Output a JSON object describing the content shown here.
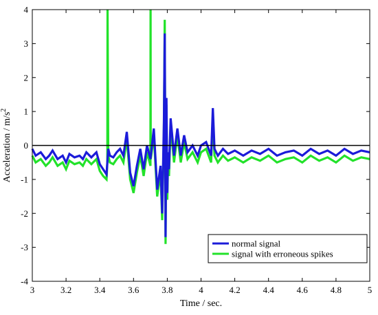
{
  "chart_data": {
    "type": "line",
    "title": "",
    "xlabel": "Time / sec.",
    "ylabel_main": "Acceleration / m/s",
    "ylabel_sup": "2",
    "xlim": [
      3,
      5
    ],
    "ylim": [
      -4,
      4
    ],
    "xticks": [
      "3",
      "3.2",
      "3.4",
      "3.6",
      "3.8",
      "4",
      "4.2",
      "4.4",
      "4.6",
      "4.8",
      "5"
    ],
    "yticks": [
      "-4",
      "-3",
      "-2",
      "-1",
      "0",
      "1",
      "2",
      "3",
      "4"
    ],
    "zero_line": true,
    "legend_position": "bottom-right",
    "series": [
      {
        "name": "signal with erroneous spikes",
        "color": "#22e22a",
        "x": [
          3.0,
          3.02,
          3.05,
          3.08,
          3.1,
          3.12,
          3.15,
          3.18,
          3.2,
          3.22,
          3.25,
          3.28,
          3.3,
          3.32,
          3.35,
          3.38,
          3.4,
          3.42,
          3.44,
          3.445,
          3.446,
          3.45,
          3.46,
          3.48,
          3.5,
          3.52,
          3.54,
          3.56,
          3.58,
          3.6,
          3.62,
          3.64,
          3.66,
          3.68,
          3.7,
          3.701,
          3.702,
          3.705,
          3.72,
          3.74,
          3.76,
          3.77,
          3.78,
          3.785,
          3.79,
          3.795,
          3.8,
          3.805,
          3.81,
          3.82,
          3.84,
          3.86,
          3.88,
          3.9,
          3.92,
          3.95,
          3.98,
          4.0,
          4.03,
          4.06,
          4.07,
          4.08,
          4.1,
          4.13,
          4.16,
          4.2,
          4.25,
          4.3,
          4.35,
          4.4,
          4.45,
          4.5,
          4.55,
          4.6,
          4.65,
          4.7,
          4.75,
          4.8,
          4.85,
          4.9,
          4.95,
          5.0
        ],
        "y": [
          -0.3,
          -0.5,
          -0.4,
          -0.6,
          -0.5,
          -0.35,
          -0.6,
          -0.5,
          -0.7,
          -0.45,
          -0.55,
          -0.5,
          -0.6,
          -0.4,
          -0.55,
          -0.4,
          -0.75,
          -0.9,
          -1.0,
          -0.5,
          4.0,
          -0.3,
          -0.5,
          -0.55,
          -0.4,
          -0.3,
          -0.5,
          0.2,
          -1.0,
          -1.4,
          -0.8,
          -0.3,
          -0.9,
          -0.2,
          -0.6,
          4.0,
          -0.4,
          -0.3,
          0.3,
          -1.5,
          -0.8,
          -2.2,
          0.5,
          3.7,
          -2.9,
          1.2,
          -1.6,
          -0.4,
          -0.9,
          0.6,
          -0.5,
          0.3,
          -0.5,
          0.1,
          -0.4,
          -0.2,
          -0.5,
          -0.2,
          -0.1,
          -0.5,
          0.9,
          -0.3,
          -0.5,
          -0.3,
          -0.45,
          -0.35,
          -0.5,
          -0.35,
          -0.45,
          -0.3,
          -0.5,
          -0.4,
          -0.35,
          -0.5,
          -0.3,
          -0.45,
          -0.35,
          -0.5,
          -0.3,
          -0.45,
          -0.35,
          -0.4
        ]
      },
      {
        "name": "normal signal",
        "color": "#1b1bd9",
        "x": [
          3.0,
          3.02,
          3.05,
          3.08,
          3.1,
          3.12,
          3.15,
          3.18,
          3.2,
          3.22,
          3.25,
          3.28,
          3.3,
          3.32,
          3.35,
          3.38,
          3.4,
          3.42,
          3.44,
          3.45,
          3.46,
          3.48,
          3.5,
          3.52,
          3.54,
          3.56,
          3.58,
          3.6,
          3.62,
          3.64,
          3.66,
          3.68,
          3.7,
          3.72,
          3.74,
          3.76,
          3.77,
          3.78,
          3.785,
          3.79,
          3.795,
          3.8,
          3.805,
          3.81,
          3.82,
          3.84,
          3.86,
          3.88,
          3.9,
          3.92,
          3.95,
          3.98,
          4.0,
          4.03,
          4.06,
          4.07,
          4.08,
          4.1,
          4.13,
          4.16,
          4.2,
          4.25,
          4.3,
          4.35,
          4.4,
          4.45,
          4.5,
          4.55,
          4.6,
          4.65,
          4.7,
          4.75,
          4.8,
          4.85,
          4.9,
          4.95,
          5.0
        ],
        "y": [
          -0.1,
          -0.3,
          -0.2,
          -0.4,
          -0.3,
          -0.15,
          -0.4,
          -0.3,
          -0.5,
          -0.25,
          -0.35,
          -0.3,
          -0.4,
          -0.2,
          -0.35,
          -0.2,
          -0.55,
          -0.7,
          -0.85,
          -0.1,
          -0.3,
          -0.35,
          -0.2,
          -0.1,
          -0.3,
          0.4,
          -0.8,
          -1.2,
          -0.6,
          -0.1,
          -0.7,
          0.0,
          -0.4,
          0.5,
          -1.3,
          -0.6,
          -2.0,
          0.7,
          3.3,
          -2.7,
          1.4,
          -1.4,
          -0.2,
          -0.7,
          0.8,
          -0.3,
          0.5,
          -0.3,
          0.3,
          -0.2,
          0.0,
          -0.3,
          0.0,
          0.1,
          -0.3,
          1.1,
          -0.1,
          -0.3,
          -0.1,
          -0.25,
          -0.15,
          -0.3,
          -0.15,
          -0.25,
          -0.1,
          -0.3,
          -0.2,
          -0.15,
          -0.3,
          -0.1,
          -0.25,
          -0.15,
          -0.3,
          -0.1,
          -0.25,
          -0.15,
          -0.2
        ]
      }
    ]
  },
  "legend": {
    "items": [
      {
        "label": "normal signal",
        "color": "#1b1bd9"
      },
      {
        "label": "signal with erroneous spikes",
        "color": "#22e22a"
      }
    ]
  }
}
